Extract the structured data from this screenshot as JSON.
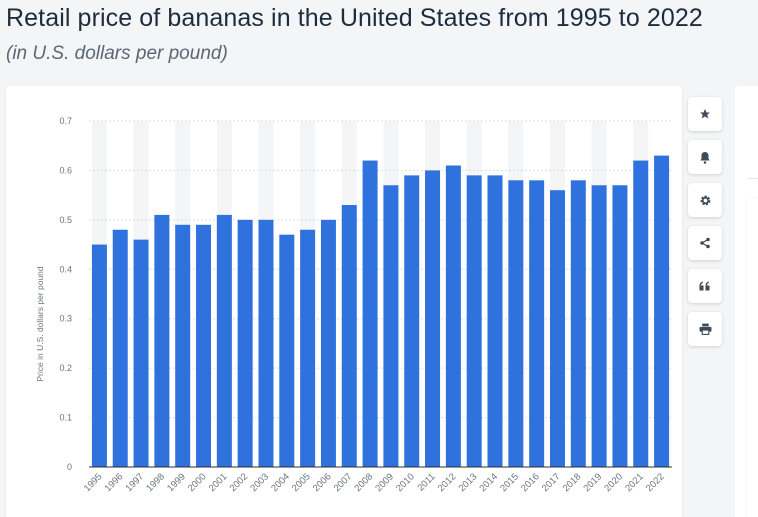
{
  "header": {
    "title": "Retail price of bananas in the United States from 1995 to 2022",
    "subtitle": "(in U.S. dollars per pound)"
  },
  "toolbar": {
    "items": [
      {
        "name": "favorite",
        "icon": "star-icon"
      },
      {
        "name": "notification",
        "icon": "bell-icon"
      },
      {
        "name": "settings",
        "icon": "gear-icon"
      },
      {
        "name": "share",
        "icon": "share-icon"
      },
      {
        "name": "cite",
        "icon": "quote-icon"
      },
      {
        "name": "print",
        "icon": "print-icon"
      }
    ]
  },
  "colors": {
    "bar": "#2f72de",
    "band": "#f4f5f6",
    "grid": "#d9dde2",
    "tick_text": "#6b7580",
    "icon": "#3e4a57"
  },
  "chart_data": {
    "type": "bar",
    "title": "Retail price of bananas in the United States from 1995 to 2022",
    "subtitle": "(in U.S. dollars per pound)",
    "xlabel": "",
    "ylabel": "Price in U.S. dollars per pound",
    "categories": [
      "1995",
      "1996",
      "1997",
      "1998",
      "1999",
      "2000",
      "2001",
      "2002",
      "2003",
      "2004",
      "2005",
      "2006",
      "2007",
      "2008",
      "2009",
      "2010",
      "2011",
      "2012",
      "2013",
      "2014",
      "2015",
      "2016",
      "2017",
      "2018",
      "2019",
      "2020",
      "2021",
      "2022"
    ],
    "values": [
      0.45,
      0.48,
      0.46,
      0.51,
      0.49,
      0.49,
      0.51,
      0.5,
      0.5,
      0.47,
      0.48,
      0.5,
      0.53,
      0.62,
      0.57,
      0.59,
      0.6,
      0.61,
      0.59,
      0.59,
      0.58,
      0.58,
      0.56,
      0.58,
      0.57,
      0.57,
      0.62,
      0.63
    ],
    "yticks": [
      "0",
      "0.1",
      "0.2",
      "0.3",
      "0.4",
      "0.5",
      "0.6",
      "0.7"
    ],
    "ylim": [
      0,
      0.7
    ],
    "grid": true,
    "legend": "none"
  }
}
